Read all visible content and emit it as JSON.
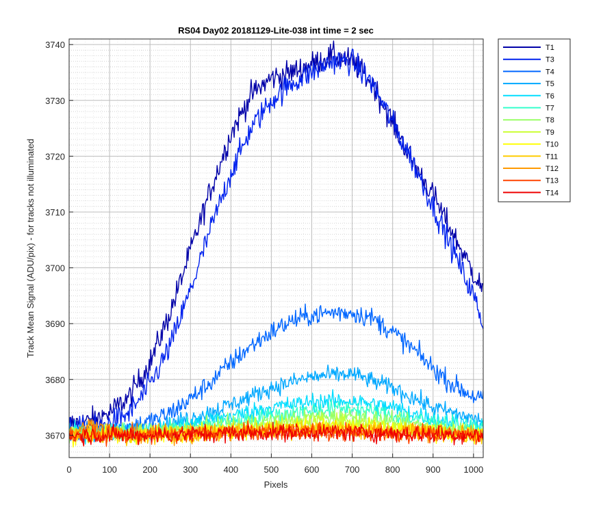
{
  "chart_data": {
    "type": "line",
    "title": "RS04 Day02 20181129-Lite-038 int time = 2 sec",
    "xlabel": "Pixels",
    "ylabel": "Track Mean Signal (ADU/pix) - for tracks not illuminated",
    "xlim": [
      0,
      1024
    ],
    "ylim": [
      3666,
      3741
    ],
    "xticks": [
      0,
      100,
      200,
      300,
      400,
      500,
      600,
      700,
      800,
      900,
      1000
    ],
    "yticks": [
      3670,
      3680,
      3690,
      3700,
      3710,
      3720,
      3730,
      3740
    ],
    "grid": true,
    "minor_grid": true,
    "legend_position": "outside-top-right",
    "series": [
      {
        "name": "T1",
        "color": "#0000a8",
        "x": [
          0,
          50,
          100,
          150,
          200,
          250,
          300,
          350,
          400,
          450,
          500,
          550,
          600,
          650,
          700,
          750,
          800,
          850,
          900,
          950,
          1000,
          1024
        ],
        "y": [
          3672,
          3672.5,
          3674,
          3677,
          3683,
          3692,
          3703,
          3714,
          3724,
          3731,
          3734,
          3735,
          3736.5,
          3738,
          3737,
          3733,
          3726,
          3719,
          3713,
          3706,
          3699,
          3696
        ]
      },
      {
        "name": "T3",
        "color": "#0022ee",
        "x": [
          0,
          50,
          100,
          150,
          200,
          250,
          300,
          350,
          400,
          450,
          500,
          550,
          600,
          650,
          700,
          750,
          800,
          850,
          900,
          950,
          1000,
          1024
        ],
        "y": [
          3671,
          3671,
          3672,
          3674,
          3679,
          3686,
          3696,
          3707,
          3717,
          3725,
          3730,
          3733,
          3735,
          3737,
          3737,
          3733,
          3726,
          3719,
          3711,
          3703,
          3695,
          3690
        ]
      },
      {
        "name": "T4",
        "color": "#0066ff",
        "x": [
          0,
          50,
          100,
          150,
          200,
          250,
          300,
          350,
          400,
          450,
          500,
          550,
          600,
          650,
          700,
          750,
          800,
          850,
          900,
          950,
          1000,
          1024
        ],
        "y": [
          3670.5,
          3670.5,
          3671,
          3671.5,
          3672.5,
          3674,
          3676.5,
          3679.5,
          3683,
          3686,
          3688.5,
          3690.5,
          3691.5,
          3692,
          3692,
          3691,
          3688.5,
          3685.5,
          3682,
          3679,
          3677,
          3676.5
        ]
      },
      {
        "name": "T5",
        "color": "#00a8ff",
        "x": [
          0,
          100,
          200,
          300,
          400,
          500,
          600,
          700,
          800,
          900,
          1024
        ],
        "y": [
          3670.5,
          3670.5,
          3671,
          3673,
          3675.5,
          3678.5,
          3680.5,
          3681,
          3678.5,
          3675,
          3672.5
        ]
      },
      {
        "name": "T6",
        "color": "#00ddff",
        "x": [
          0,
          100,
          200,
          300,
          400,
          500,
          600,
          700,
          800,
          900,
          1024
        ],
        "y": [
          3670.5,
          3670.5,
          3670.8,
          3672,
          3673.5,
          3675,
          3676,
          3676.2,
          3675,
          3673,
          3671.5
        ]
      },
      {
        "name": "T7",
        "color": "#33ffcc",
        "x": [
          0,
          200,
          400,
          600,
          700,
          800,
          1024
        ],
        "y": [
          3670.5,
          3670.6,
          3672.5,
          3674.5,
          3674.8,
          3673.5,
          3671
        ]
      },
      {
        "name": "T8",
        "color": "#99ff66",
        "x": [
          0,
          200,
          400,
          600,
          700,
          800,
          1024
        ],
        "y": [
          3670.3,
          3670.4,
          3671.8,
          3673.2,
          3673.4,
          3672.4,
          3670.5
        ]
      },
      {
        "name": "T9",
        "color": "#ccff33",
        "x": [
          0,
          200,
          400,
          600,
          700,
          800,
          1024
        ],
        "y": [
          3670.2,
          3670.3,
          3671.2,
          3672.2,
          3672.4,
          3671.7,
          3670.3
        ]
      },
      {
        "name": "T10",
        "color": "#ffff00",
        "x": [
          0,
          200,
          400,
          600,
          800,
          1024
        ],
        "y": [
          3670,
          3670.1,
          3670.8,
          3671.5,
          3671,
          3670
        ]
      },
      {
        "name": "T11",
        "color": "#ffcc00",
        "x": [
          0,
          200,
          400,
          600,
          800,
          1024
        ],
        "y": [
          3670,
          3670,
          3670.6,
          3671.2,
          3670.8,
          3670
        ]
      },
      {
        "name": "T12",
        "color": "#ff9900",
        "x": [
          0,
          60,
          120,
          300,
          500,
          700,
          900,
          1024
        ],
        "y": [
          3670,
          3672,
          3670.3,
          3670.2,
          3670.8,
          3670.8,
          3670.4,
          3670.4
        ]
      },
      {
        "name": "T13",
        "color": "#ff4400",
        "x": [
          0,
          200,
          400,
          600,
          800,
          1024
        ],
        "y": [
          3670,
          3670,
          3670.5,
          3670.7,
          3670.4,
          3670
        ]
      },
      {
        "name": "T14",
        "color": "#ee0000",
        "x": [
          0,
          200,
          400,
          600,
          800,
          1024
        ],
        "y": [
          3670,
          3670,
          3670.4,
          3670.6,
          3670.3,
          3670
        ]
      }
    ]
  }
}
